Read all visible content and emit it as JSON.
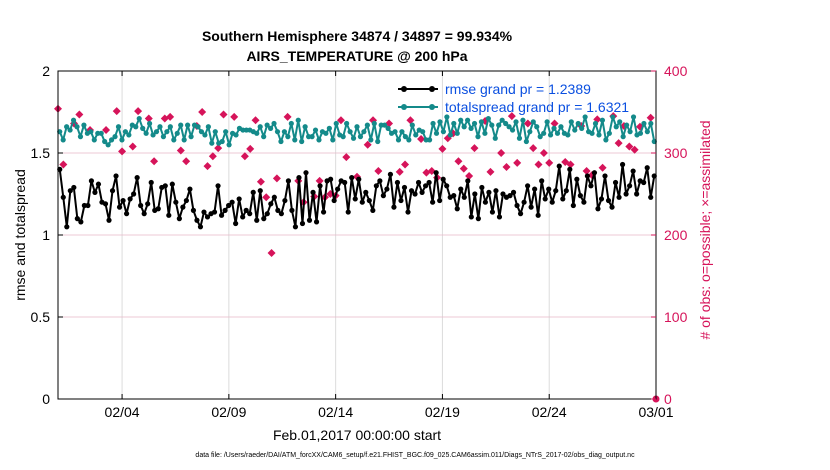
{
  "chart_data": {
    "type": "line",
    "title": [
      "Southern Hemisphere 34874 / 34897 = 99.934%",
      "AIRS_TEMPERATURE @ 200 hPa"
    ],
    "xlabel": "Feb.01,2017 00:00:00 start",
    "ylabel": "rmse and totalspread",
    "y2label": "# of obs: o=possible; ×=assimilated",
    "footnote": "data file: /Users/raeder/DAI/ATM_forcXX/CAM6_setup/f.e21.FHIST_BGC.f09_025.CAM6assim.011/Diags_NTrS_2017-02/obs_diag_output.nc",
    "xlim": [
      0,
      28
    ],
    "ylim": [
      0,
      2
    ],
    "y2lim": [
      0,
      400
    ],
    "x_ticks": [
      {
        "pos": 3,
        "label": "02/04"
      },
      {
        "pos": 8,
        "label": "02/09"
      },
      {
        "pos": 13,
        "label": "02/14"
      },
      {
        "pos": 18,
        "label": "02/19"
      },
      {
        "pos": 23,
        "label": "02/24"
      },
      {
        "pos": 28,
        "label": "03/01"
      }
    ],
    "y_ticks": [
      {
        "value": 0,
        "label": "0"
      },
      {
        "value": 0.5,
        "label": "0.5"
      },
      {
        "value": 1,
        "label": "1"
      },
      {
        "value": 1.5,
        "label": "1.5"
      },
      {
        "value": 2,
        "label": "2"
      }
    ],
    "y2_ticks": [
      {
        "value": 0,
        "label": "0"
      },
      {
        "value": 100,
        "label": "100"
      },
      {
        "value": 200,
        "label": "200"
      },
      {
        "value": 300,
        "label": "300"
      },
      {
        "value": 400,
        "label": "400"
      }
    ],
    "colors": {
      "rmse": "#000000",
      "spread": "#148a8a",
      "obs": "#d6145a",
      "legend_text": "#0a4fe0",
      "grid": "#e6b8c8"
    },
    "series": [
      {
        "name": "rmse grand pr = 1.2389",
        "axis": "left",
        "values": [
          1.4,
          1.23,
          1.05,
          1.27,
          1.29,
          1.1,
          1.08,
          1.18,
          1.18,
          1.33,
          1.26,
          1.31,
          1.2,
          1.19,
          1.09,
          1.27,
          1.36,
          1.17,
          1.21,
          1.13,
          1.22,
          1.25,
          1.35,
          1.18,
          1.13,
          1.19,
          1.32,
          1.15,
          1.16,
          1.29,
          1.3,
          1.12,
          1.31,
          1.2,
          1.1,
          1.17,
          1.21,
          1.28,
          1.15,
          1.09,
          1.05,
          1.14,
          1.11,
          1.13,
          1.14,
          1.3,
          1.12,
          1.15,
          1.18,
          1.2,
          1.07,
          1.22,
          1.11,
          1.15,
          1.13,
          1.26,
          1.09,
          1.27,
          1.1,
          1.13,
          1.19,
          1.23,
          1.15,
          1.13,
          1.21,
          1.33,
          1.15,
          1.05,
          1.35,
          1.07,
          1.38,
          1.09,
          1.26,
          1.08,
          1.3,
          1.14,
          1.33,
          1.34,
          1.21,
          1.28,
          1.33,
          1.32,
          1.14,
          1.35,
          1.22,
          1.34,
          1.2,
          1.26,
          1.21,
          1.15,
          1.3,
          1.33,
          1.24,
          1.28,
          1.37,
          1.17,
          1.32,
          1.21,
          1.29,
          1.14,
          1.27,
          1.25,
          1.32,
          1.26,
          1.3,
          1.32,
          1.2,
          1.38,
          1.21,
          1.34,
          1.3,
          1.23,
          1.24,
          1.16,
          1.28,
          1.23,
          1.33,
          1.11,
          1.25,
          1.1,
          1.29,
          1.2,
          1.26,
          1.14,
          1.27,
          1.11,
          1.25,
          1.23,
          1.24,
          1.26,
          1.18,
          1.13,
          1.2,
          1.3,
          1.17,
          1.28,
          1.12,
          1.33,
          1.22,
          1.28,
          1.2,
          1.27,
          1.42,
          1.22,
          1.27,
          1.4,
          1.18,
          1.34,
          1.24,
          1.2,
          1.36,
          1.3,
          1.38,
          1.16,
          1.22,
          1.36,
          1.21,
          1.17,
          1.32,
          1.23,
          1.43,
          1.25,
          1.3,
          1.39,
          1.25,
          1.33,
          1.32,
          1.41,
          1.23,
          1.36
        ]
      },
      {
        "name": "totalspread grand pr = 1.6321",
        "axis": "left",
        "values": [
          1.63,
          1.58,
          1.66,
          1.64,
          1.7,
          1.66,
          1.6,
          1.67,
          1.62,
          1.63,
          1.58,
          1.62,
          1.62,
          1.57,
          1.55,
          1.58,
          1.6,
          1.66,
          1.58,
          1.63,
          1.61,
          1.67,
          1.66,
          1.71,
          1.65,
          1.62,
          1.68,
          1.61,
          1.63,
          1.66,
          1.6,
          1.63,
          1.66,
          1.58,
          1.62,
          1.67,
          1.58,
          1.67,
          1.6,
          1.67,
          1.66,
          1.63,
          1.61,
          1.66,
          1.56,
          1.63,
          1.56,
          1.57,
          1.63,
          1.55,
          1.62,
          1.61,
          1.65,
          1.64,
          1.64,
          1.64,
          1.63,
          1.62,
          1.66,
          1.6,
          1.67,
          1.65,
          1.68,
          1.63,
          1.57,
          1.63,
          1.6,
          1.68,
          1.58,
          1.7,
          1.57,
          1.66,
          1.6,
          1.6,
          1.64,
          1.58,
          1.63,
          1.62,
          1.65,
          1.58,
          1.68,
          1.61,
          1.6,
          1.68,
          1.63,
          1.59,
          1.66,
          1.6,
          1.63,
          1.67,
          1.58,
          1.68,
          1.57,
          1.67,
          1.67,
          1.65,
          1.62,
          1.63,
          1.58,
          1.63,
          1.6,
          1.58,
          1.67,
          1.61,
          1.64,
          1.63,
          1.58,
          1.58,
          1.68,
          1.62,
          1.69,
          1.63,
          1.72,
          1.61,
          1.68,
          1.62,
          1.7,
          1.66,
          1.7,
          1.65,
          1.68,
          1.6,
          1.69,
          1.62,
          1.71,
          1.67,
          1.59,
          1.67,
          1.7,
          1.68,
          1.66,
          1.64,
          1.69,
          1.59,
          1.7,
          1.57,
          1.63,
          1.69,
          1.66,
          1.6,
          1.62,
          1.69,
          1.61,
          1.65,
          1.62,
          1.66,
          1.62,
          1.61,
          1.69,
          1.64,
          1.68,
          1.65,
          1.72,
          1.63,
          1.62,
          1.68,
          1.61,
          1.7,
          1.58,
          1.62,
          1.72,
          1.66,
          1.69,
          1.6,
          1.67,
          1.63,
          1.72,
          1.61,
          1.62,
          1.68,
          1.63,
          1.68,
          1.57
        ]
      }
    ],
    "obs_assimilated": {
      "name": "assimilated",
      "axis": "right",
      "points": [
        [
          0,
          354
        ],
        [
          0.25,
          286
        ],
        [
          0.75,
          336
        ],
        [
          1,
          347
        ],
        [
          1.5,
          328
        ],
        [
          2.25,
          328
        ],
        [
          2.75,
          351
        ],
        [
          3,
          302
        ],
        [
          3.5,
          308
        ],
        [
          3.75,
          351
        ],
        [
          4.25,
          342
        ],
        [
          4.5,
          290
        ],
        [
          5,
          342
        ],
        [
          5.25,
          344
        ],
        [
          5.75,
          303
        ],
        [
          6,
          290
        ],
        [
          6.5,
          333
        ],
        [
          6.75,
          350
        ],
        [
          7,
          284
        ],
        [
          7.25,
          296
        ],
        [
          7.5,
          306
        ],
        [
          7.75,
          347
        ],
        [
          8.25,
          344
        ],
        [
          8.75,
          296
        ],
        [
          9,
          305
        ],
        [
          9.25,
          340
        ],
        [
          9.5,
          265
        ],
        [
          9.75,
          246
        ],
        [
          10,
          178
        ],
        [
          10.25,
          269
        ],
        [
          10.75,
          344
        ],
        [
          11.25,
          266
        ],
        [
          11.5,
          240
        ],
        [
          12,
          247
        ],
        [
          12.25,
          266
        ],
        [
          12.5,
          246
        ],
        [
          12.75,
          250
        ],
        [
          13,
          248
        ],
        [
          13.25,
          340
        ],
        [
          13.5,
          295
        ],
        [
          14,
          271
        ],
        [
          14.5,
          310
        ],
        [
          14.75,
          340
        ],
        [
          15,
          278
        ],
        [
          15.5,
          336
        ],
        [
          16,
          277
        ],
        [
          16.25,
          286
        ],
        [
          16.5,
          340
        ],
        [
          17,
          317
        ],
        [
          17.25,
          276
        ],
        [
          17.5,
          278
        ],
        [
          17.75,
          270
        ],
        [
          18,
          305
        ],
        [
          18.25,
          318
        ],
        [
          18.5,
          324
        ],
        [
          18.75,
          290
        ],
        [
          19,
          281
        ],
        [
          19.25,
          272
        ],
        [
          19.5,
          306
        ],
        [
          20,
          339
        ],
        [
          20.25,
          277
        ],
        [
          20.75,
          300
        ],
        [
          21,
          283
        ],
        [
          21.25,
          345
        ],
        [
          21.5,
          288
        ],
        [
          22,
          336
        ],
        [
          22.25,
          306
        ],
        [
          22.5,
          286
        ],
        [
          22.75,
          300
        ],
        [
          23,
          288
        ],
        [
          23.25,
          336
        ],
        [
          23.75,
          289
        ],
        [
          24,
          286
        ],
        [
          24.5,
          333
        ],
        [
          24.75,
          278
        ],
        [
          25,
          273
        ],
        [
          25.25,
          341
        ],
        [
          25.5,
          282
        ],
        [
          26,
          345
        ],
        [
          26.25,
          312
        ],
        [
          26.5,
          333
        ],
        [
          26.75,
          308
        ],
        [
          27,
          304
        ],
        [
          27.25,
          332
        ],
        [
          27.75,
          343
        ]
      ]
    },
    "obs_possible": {
      "name": "possible",
      "axis": "right",
      "points": [
        [
          28,
          0
        ]
      ]
    }
  }
}
